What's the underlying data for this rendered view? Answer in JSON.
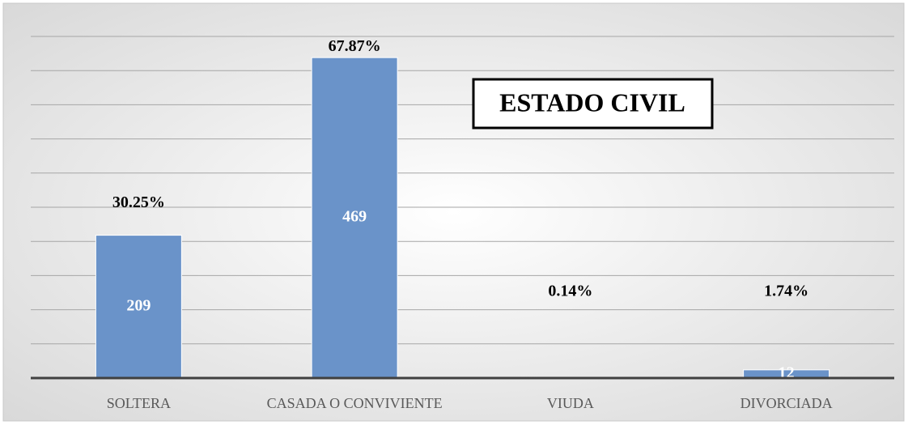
{
  "chart_data": {
    "type": "bar",
    "title": "ESTADO CIVIL",
    "categories": [
      "SOLTERA",
      "CASADA O CONVIVIENTE",
      "VIUDA",
      "DIVORCIADA"
    ],
    "values": [
      209,
      469,
      1,
      12
    ],
    "value_labels": [
      "209",
      "469",
      null,
      "12"
    ],
    "percent_labels": [
      "30.25%",
      "67.87%",
      "0.14%",
      "1.74%"
    ],
    "color": "#6a93c9",
    "ylim": [
      0,
      500
    ],
    "yticks": [
      0,
      50,
      100,
      150,
      200,
      250,
      300,
      350,
      400,
      450,
      500
    ],
    "grid": true
  }
}
